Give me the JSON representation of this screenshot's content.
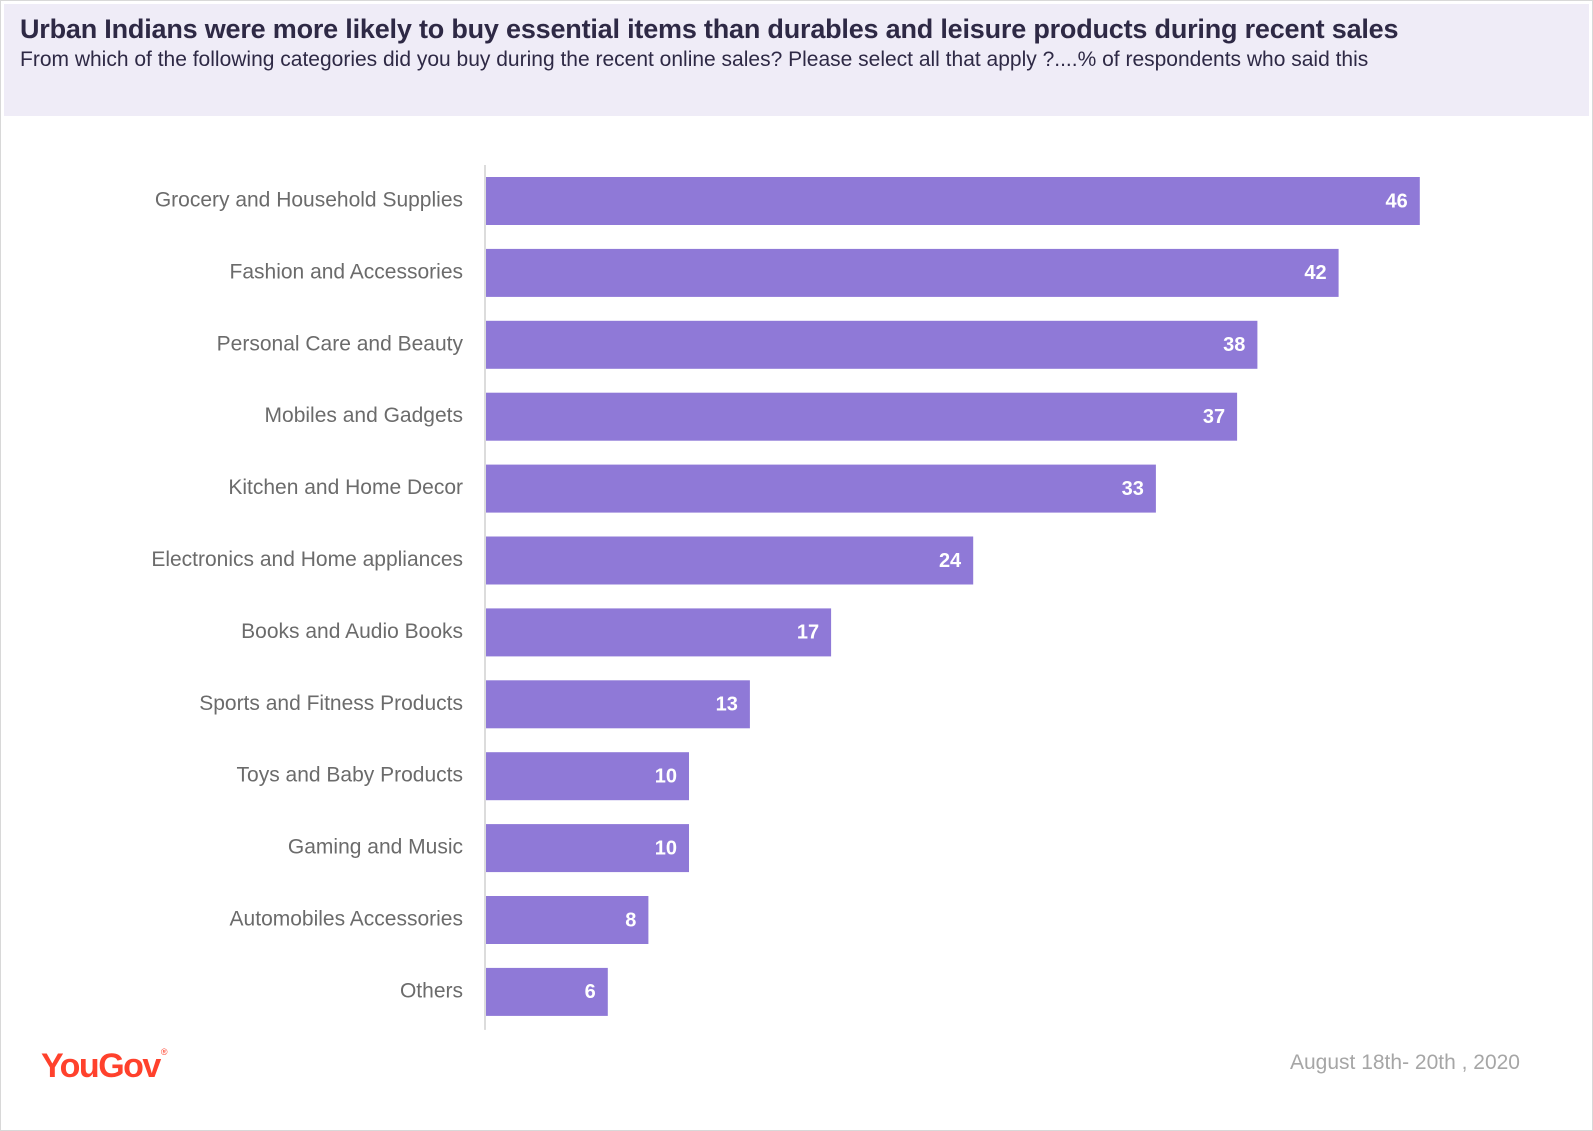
{
  "title": "Urban Indians were more likely to buy essential items than durables and leisure products during  recent  sales",
  "subtitle": "From which of the following categories did you buy during the recent online sales? Please select all that apply ?....% of respondents who said this",
  "brand": "YouGov",
  "brand_mark": "®",
  "date": "August 18th- 20th , 2020",
  "colors": {
    "bar": "#8f79d7",
    "header_bg": "#efecf7",
    "title": "#2e2945",
    "brand": "#ff412c"
  },
  "chart_data": {
    "type": "bar",
    "orientation": "horizontal",
    "categories": [
      "Grocery and Household Supplies",
      "Fashion and Accessories",
      "Personal Care and Beauty",
      "Mobiles and Gadgets",
      "Kitchen and Home Decor",
      "Electronics and Home appliances",
      "Books and Audio Books",
      "Sports and Fitness Products",
      "Toys and Baby Products",
      "Gaming and Music",
      "Automobiles Accessories",
      "Others"
    ],
    "values": [
      46,
      42,
      38,
      37,
      33,
      24,
      17,
      13,
      10,
      10,
      8,
      6
    ],
    "title": "Urban Indians were more likely to buy essential items than durables and leisure products during  recent  sales",
    "xlabel": "",
    "ylabel": "",
    "xlim": [
      0,
      50
    ],
    "grid": false,
    "data_labels": true
  }
}
